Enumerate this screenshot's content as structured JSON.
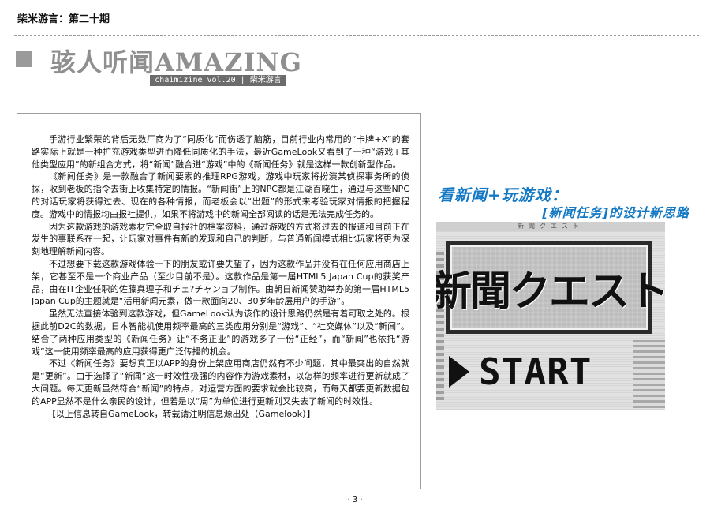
{
  "header": {
    "issue": "柴米游言：第二十期",
    "title": "骇人听闻AMAZING",
    "subtitle": "chaimizine vol.20 | 柴米游言"
  },
  "article": {
    "paragraphs": [
      "手游行业繁荣的背后无数厂商为了“同质化”而伤透了脑筋，目前行业内常用的“卡牌+X”的套路实际上就是一种扩充游戏类型进而降低同质化的手法，最近GameLook又看到了一种“游戏+其他类型应用”的新组合方式，将“新闻”融合进“游戏”中的《新闻任务》就是这样一款创新型作品。",
      "《新闻任务》是一款融合了新闻要素的推理RPG游戏，游戏中玩家将扮演某侦探事务所的侦探，收到老板的指令去街上收集特定的情报。“新闻街”上的NPC都是江湖百晓生，通过与这些NPC的对话玩家将获得过去、现在的各种情报，而老板会以“出题”的形式来考验玩家对情报的把握程度。游戏中的情报均由报社提供，如果不将游戏中的新闻全部阅读的话是无法完成任务的。",
      "因为这款游戏的游戏素材完全取自报社的档案资料，通过游戏的方式将过去的报道和目前正在发生的事联系在一起，让玩家对事件有新的发现和自己的判断，与普通新闻模式相比玩家将更为深刻地理解新闻内容。",
      "不过想要下载这款游戏体验一下的朋友或许要失望了，因为这款作品并没有在任何应用商店上架，它甚至不是一个商业产品（至少目前不是）。这款作品是第一届HTML5 Japan Cup的获奖产品，由在IT企业任职的佐藤真理子和チェ?チャンョブ制作。由朝日新闻赞助举办的第一届HTML5 Japan Cup的主题就是“活用新闻元素，做一款面向20、30岁年龄层用户的手游”。",
      "虽然无法直接体验到这款游戏，但GameLook认为该作的设计思路仍然是有着可取之处的。根据此前D2C的数据，日本智能机使用频率最高的三类应用分别是“游戏”、“社交媒体”以及“新闻”。结合了两种应用类型的《新闻任务》让“不务正业”的游戏多了一份“正经”，而“新闻”也依托“游戏”这一使用频率最高的应用获得更广泛传播的机会。",
      "不过《新闻任务》要想真正以APP的身份上架应用商店仍然有不少问题，其中最突出的自然就是“更新”。由于选择了“新闻”这一时效性极强的内容作为游戏素材，以怎样的频率进行更新就成了大问题。每天更新虽然符合“新闻”的特点，对运营方面的要求就会比较高，而每天都要更新数据包的APP显然不是什么亲民的设计，但若是以“周”为单位进行更新则又失去了新闻的时效性。"
    ],
    "credit": "【以上信息转自GameLook，转载请注明信息源出处（Gamelook）】"
  },
  "promo": {
    "headline": "看新闻+玩游戏：",
    "subheadline": "[新闻任务]的设计新思路",
    "game_header": "新聞クエスト",
    "game_logo": "新聞クエスト",
    "start_label": "START"
  },
  "footer": {
    "page_number": "· 3 ·"
  },
  "colors": {
    "title_gray": "#8f8f8f",
    "subtitle_bar": "#6b6b6b",
    "promo_blue": "#1479c4"
  }
}
